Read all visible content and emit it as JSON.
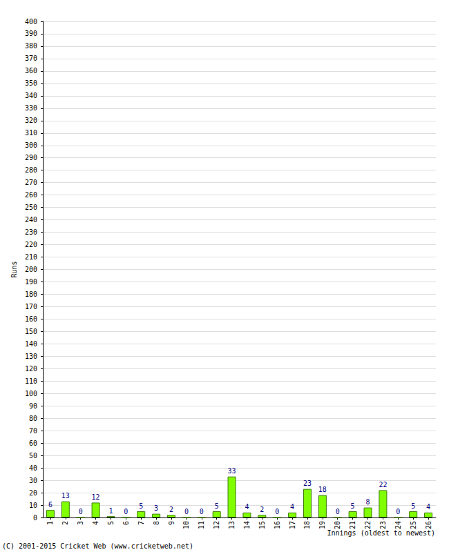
{
  "chart_data": {
    "type": "bar",
    "xlabel": "Innings (oldest to newest)",
    "ylabel": "Runs",
    "annotations": [
      "(C) 2001-2015 Cricket Web (www.cricketweb.net)"
    ],
    "categories": [
      "1",
      "2",
      "3",
      "4",
      "5",
      "6",
      "7",
      "8",
      "9",
      "10",
      "11",
      "12",
      "13",
      "14",
      "15",
      "16",
      "17",
      "18",
      "19",
      "20",
      "21",
      "22",
      "23",
      "24",
      "25",
      "26"
    ],
    "values": [
      6,
      13,
      0,
      12,
      1,
      0,
      5,
      3,
      2,
      0,
      0,
      5,
      33,
      4,
      2,
      0,
      4,
      23,
      18,
      0,
      5,
      8,
      22,
      0,
      5,
      4
    ],
    "color": "#80ff00",
    "ylim": [
      0,
      400
    ],
    "yticks": [
      0,
      10,
      20,
      30,
      40,
      50,
      60,
      70,
      80,
      90,
      100,
      110,
      120,
      130,
      140,
      150,
      160,
      170,
      180,
      190,
      200,
      210,
      220,
      230,
      240,
      250,
      260,
      270,
      280,
      290,
      300,
      310,
      320,
      330,
      340,
      350,
      360,
      370,
      380,
      390,
      400
    ],
    "grid": true,
    "data_labels": true
  }
}
